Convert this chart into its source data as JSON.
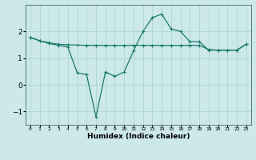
{
  "xlabel": "Humidex (Indice chaleur)",
  "x_values": [
    0,
    1,
    2,
    3,
    4,
    5,
    6,
    7,
    8,
    9,
    10,
    11,
    12,
    13,
    14,
    15,
    16,
    17,
    18,
    19,
    20,
    21,
    22,
    23
  ],
  "line1_y": [
    1.78,
    1.65,
    1.58,
    1.52,
    1.5,
    1.49,
    1.48,
    1.48,
    1.48,
    1.48,
    1.48,
    1.48,
    1.48,
    1.48,
    1.48,
    1.48,
    1.48,
    1.48,
    1.48,
    1.32,
    1.3,
    1.3,
    1.3,
    1.52
  ],
  "line2_y": [
    1.78,
    1.65,
    1.55,
    1.48,
    1.42,
    0.45,
    0.38,
    -1.2,
    0.48,
    0.32,
    0.48,
    1.28,
    2.0,
    2.52,
    2.65,
    2.1,
    2.0,
    1.62,
    1.62,
    1.3,
    1.3,
    1.3,
    1.3,
    1.52
  ],
  "line_color": "#1a7a6e",
  "bg_color": "#cce8e8",
  "grid_color": "#b0d8d8",
  "ylim": [
    -1.5,
    3.0
  ],
  "yticks": [
    -1,
    0,
    1,
    2
  ],
  "xlim": [
    -0.5,
    23.5
  ]
}
